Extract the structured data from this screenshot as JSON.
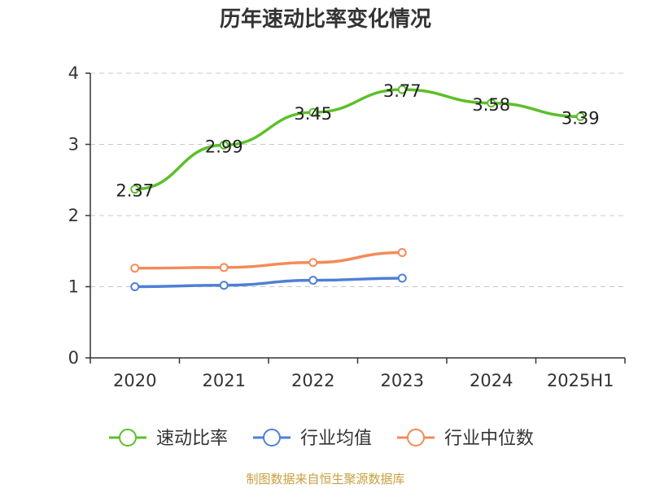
{
  "chart_data": {
    "type": "line",
    "title": "历年速动比率变化情况",
    "categories": [
      "2020",
      "2021",
      "2022",
      "2023",
      "2024",
      "2025H1"
    ],
    "ylim": [
      0,
      4
    ],
    "yticks": [
      0,
      1,
      2,
      3,
      4
    ],
    "grid": true,
    "legend_position": "bottom",
    "series": [
      {
        "name": "速动比率",
        "color": "#5cbf2a",
        "values": [
          2.37,
          2.99,
          3.45,
          3.77,
          3.58,
          3.39
        ],
        "show_labels": true
      },
      {
        "name": "行业均值",
        "color": "#4f7fd6",
        "values": [
          1.0,
          1.02,
          1.09,
          1.12,
          null,
          null
        ],
        "show_labels": false
      },
      {
        "name": "行业中位数",
        "color": "#f38b58",
        "values": [
          1.26,
          1.27,
          1.34,
          1.48,
          null,
          null
        ],
        "show_labels": false
      }
    ]
  },
  "source_text": "制图数据来自恒生聚源数据库"
}
